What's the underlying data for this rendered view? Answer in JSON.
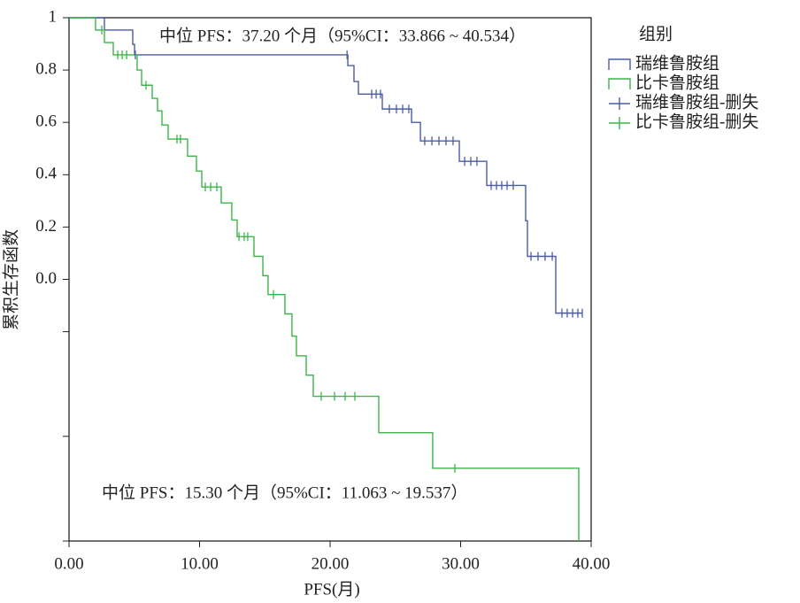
{
  "chart_data": {
    "type": "step",
    "y_label": "累积生存函数",
    "x_label": "PFS(月)",
    "annotations": [
      "中位 PFS：37.20 个月（95%CI：33.866 ~ 40.534）",
      "中位 PFS：15.30 个月（95%CI：11.063 ~ 19.537）"
    ],
    "legend_title": "组别",
    "legend": "right",
    "xlim": [
      0,
      40
    ],
    "ylim": [
      -1.0,
      1.0
    ],
    "xticks": [
      {
        "value": 0,
        "label": "0.00"
      },
      {
        "value": 10,
        "label": "10.00"
      },
      {
        "value": 20,
        "label": "20.00"
      },
      {
        "value": 30,
        "label": "30.00"
      },
      {
        "value": 40,
        "label": "40.00"
      }
    ],
    "yticks": [
      1.0,
      0.8,
      0.6,
      0.4,
      0.2,
      {
        "value": 0,
        "label": "0.0"
      }
    ],
    "minor_yticks": [
      -0.2,
      -0.6,
      -1.0
    ],
    "series": [
      {
        "name": "瑞维鲁胺组",
        "color": "#4a5ca6",
        "marker": "step",
        "x": [
          0,
          2.71,
          4.88,
          5.02,
          21.36,
          21.83,
          22.17,
          24.0,
          26.24,
          26.92,
          29.9,
          32.0,
          34.98,
          35.12,
          37.29,
          39.3
        ],
        "values": [
          1,
          0.953,
          0.898,
          0.858,
          0.817,
          0.756,
          0.708,
          0.651,
          0.6,
          0.529,
          0.451,
          0.359,
          0.224,
          0.088,
          -0.129,
          -0.129
        ]
      },
      {
        "name": "比卡鲁胺组",
        "color": "#3db54a",
        "marker": "step",
        "x": [
          0,
          2.03,
          2.71,
          3.39,
          5.22,
          5.56,
          6.37,
          6.78,
          7.12,
          7.59,
          9.08,
          9.76,
          10.17,
          11.66,
          12.47,
          12.88,
          14.17,
          14.85,
          15.25,
          16.54,
          17.08,
          17.42,
          18.17,
          18.71,
          23.73,
          27.86,
          39.05
        ],
        "values": [
          1,
          0.953,
          0.905,
          0.858,
          0.8,
          0.742,
          0.692,
          0.644,
          0.59,
          0.536,
          0.471,
          0.414,
          0.353,
          0.292,
          0.227,
          0.163,
          0.088,
          0.014,
          -0.058,
          -0.132,
          -0.217,
          -0.292,
          -0.366,
          -0.447,
          -0.586,
          -0.722,
          -1.0
        ]
      },
      {
        "name": "瑞维鲁胺组-删失",
        "color": "#4a5ca6",
        "marker": "censor",
        "x": [
          5.08,
          21.3,
          23.19,
          23.53,
          23.86,
          24.54,
          25.08,
          25.56,
          26.03,
          27.25,
          27.8,
          28.34,
          28.88,
          29.42,
          30.31,
          30.78,
          31.25,
          32.34,
          32.75,
          33.15,
          33.56,
          34.03,
          35.39,
          35.93,
          36.47,
          37.02,
          37.76,
          38.17,
          38.58,
          38.98,
          39.32
        ],
        "values": [
          0.858,
          0.858,
          0.708,
          0.708,
          0.708,
          0.651,
          0.651,
          0.651,
          0.651,
          0.529,
          0.529,
          0.529,
          0.529,
          0.529,
          0.451,
          0.451,
          0.451,
          0.359,
          0.359,
          0.359,
          0.359,
          0.359,
          0.088,
          0.088,
          0.088,
          0.088,
          -0.129,
          -0.129,
          -0.129,
          -0.129,
          -0.129
        ]
      },
      {
        "name": "比卡鲁胺组-删失",
        "color": "#3db54a",
        "marker": "censor",
        "x": [
          2.51,
          3.73,
          4.07,
          4.41,
          5.9,
          8.27,
          8.54,
          10.44,
          10.85,
          11.32,
          13.02,
          13.42,
          13.69,
          15.66,
          19.32,
          20.34,
          21.15,
          21.9,
          29.56
        ],
        "values": [
          0.953,
          0.858,
          0.858,
          0.858,
          0.742,
          0.536,
          0.536,
          0.353,
          0.353,
          0.353,
          0.163,
          0.163,
          0.163,
          -0.058,
          -0.447,
          -0.447,
          -0.447,
          -0.447,
          -0.722
        ]
      }
    ]
  }
}
